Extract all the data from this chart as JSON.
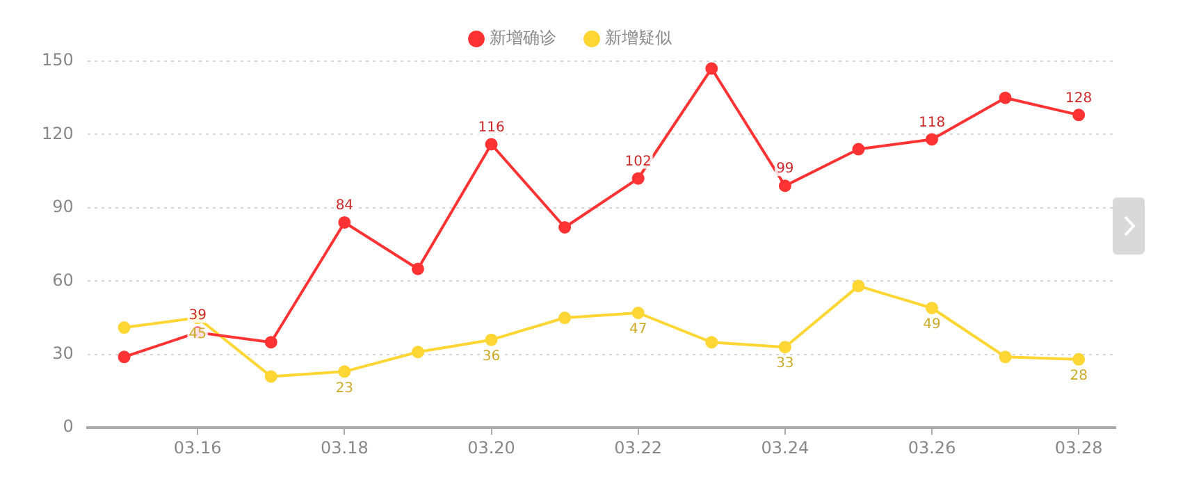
{
  "chart_data": {
    "type": "line",
    "categories": [
      null,
      "03.16",
      null,
      "03.18",
      null,
      "03.20",
      null,
      "03.22",
      null,
      "03.24",
      null,
      "03.26",
      null,
      "03.28"
    ],
    "series": [
      {
        "name": "新增确诊",
        "color": "#ff3333",
        "values": [
          29,
          39,
          35,
          84,
          65,
          116,
          82,
          102,
          147,
          99,
          114,
          118,
          135,
          128
        ],
        "value_labels": [
          null,
          "39",
          null,
          "84",
          null,
          "116",
          null,
          "102",
          null,
          "99",
          null,
          "118",
          null,
          "128"
        ]
      },
      {
        "name": "新增疑似",
        "color": "#ffd633",
        "values": [
          41,
          45,
          21,
          23,
          31,
          36,
          45,
          47,
          35,
          33,
          58,
          49,
          29,
          28
        ],
        "value_labels": [
          null,
          "45",
          null,
          "23",
          null,
          "36",
          null,
          "47",
          null,
          "33",
          null,
          "49",
          null,
          "28"
        ]
      }
    ],
    "ylim": [
      0,
      150
    ],
    "yticks": [
      0,
      30,
      60,
      90,
      120,
      150
    ],
    "grid": "y",
    "legend": "top",
    "marker": "circle",
    "line_style": "solid"
  }
}
